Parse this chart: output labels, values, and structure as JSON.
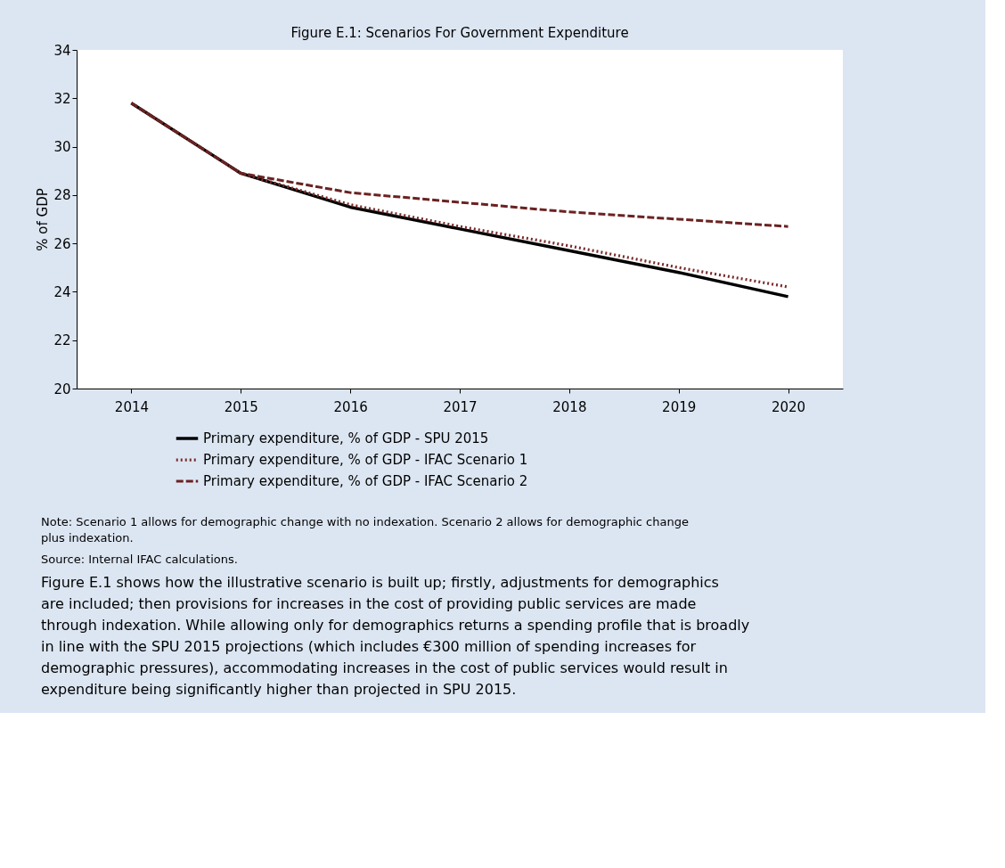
{
  "chart_data": {
    "type": "line",
    "title": "Figure E.1: Scenarios For Government Expenditure",
    "ylabel": "% of GDP",
    "categories": [
      "2014",
      "2015",
      "2016",
      "2017",
      "2018",
      "2019",
      "2020"
    ],
    "series": [
      {
        "name": "Primary expenditure, % of GDP - SPU 2015",
        "color": "#000000",
        "line_style": "solid",
        "values": [
          31.8,
          28.9,
          27.5,
          26.6,
          25.7,
          24.8,
          23.8
        ]
      },
      {
        "name": "Primary expenditure, % of GDP - IFAC Scenario 1",
        "color": "#7a2a2a",
        "line_style": "dotted",
        "values": [
          31.8,
          28.9,
          27.6,
          26.7,
          25.9,
          25.0,
          24.2
        ]
      },
      {
        "name": "Primary expenditure, % of GDP - IFAC Scenario 2",
        "color": "#6b2222",
        "line_style": "dashed",
        "values": [
          31.8,
          28.9,
          28.1,
          27.7,
          27.3,
          27.0,
          26.7
        ]
      }
    ],
    "ylim": [
      20,
      34
    ],
    "yticks": [
      20,
      22,
      24,
      26,
      28,
      30,
      32,
      34
    ],
    "grid": false,
    "legend": "bottom",
    "marker": "none",
    "annotations": [
      "Note: Scenario 1 allows for demographic change with no indexation. Scenario 2 allows for demographic change plus indexation.",
      "Source: Internal IFAC calculations.",
      "Figure E.1 shows how the illustrative scenario is built up; firstly, adjustments for demographics are included; then provisions for increases in the cost of providing public services are made through indexation. While allowing only for demographics returns a spending profile that is broadly in line with the SPU 2015 projections (which includes €300 million of spending increases for demographic pressures), accommodating increases in the cost of public services would result in expenditure being significantly higher than projected in SPU 2015."
    ]
  }
}
